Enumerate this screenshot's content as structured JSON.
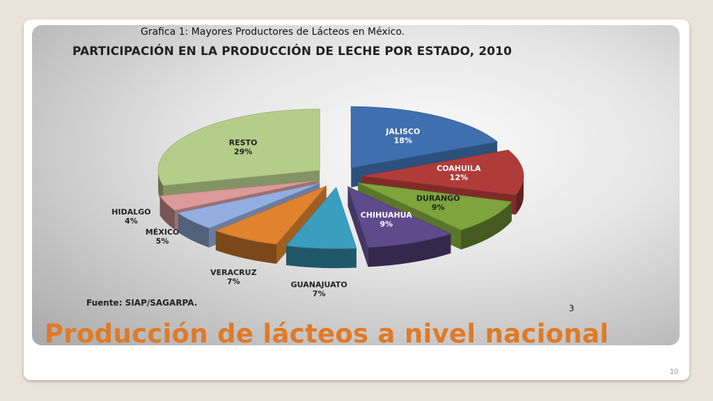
{
  "caption": "Grafica 1: Mayores Productores de Lácteos en México.",
  "panel_number": "3",
  "slide_title": "Producción de lácteos a nivel nacional",
  "slide_number": "10",
  "chart_data": {
    "type": "pie",
    "title": "PARTICIPACIÓN EN LA PRODUCCIÓN DE LECHE POR ESTADO, 2010",
    "source": "Fuente: SIAP/SAGARPA.",
    "exploded": true,
    "style": "3d",
    "slices": [
      {
        "name": "JALISCO",
        "label": "18%",
        "value": 18,
        "color": "#3f6fae"
      },
      {
        "name": "COAHUILA",
        "label": "12%",
        "value": 12,
        "color": "#b03c3a"
      },
      {
        "name": "DURANGO",
        "label": "9%",
        "value": 9,
        "color": "#7ea43c"
      },
      {
        "name": "CHIHUAHUA",
        "label": "9%",
        "value": 9,
        "color": "#5f4b8b"
      },
      {
        "name": "GUANAJUATO",
        "label": "7%",
        "value": 7,
        "color": "#3a9ebf"
      },
      {
        "name": "VERACRUZ",
        "label": "7%",
        "value": 7,
        "color": "#e0822e"
      },
      {
        "name": "MÉXICO",
        "label": "5%",
        "value": 5,
        "color": "#93aee0"
      },
      {
        "name": "HIDALGO",
        "label": "4%",
        "value": 4,
        "color": "#dc9a9a"
      },
      {
        "name": "RESTO",
        "label": "29%",
        "value": 29,
        "color": "#b5cd8a"
      }
    ]
  }
}
